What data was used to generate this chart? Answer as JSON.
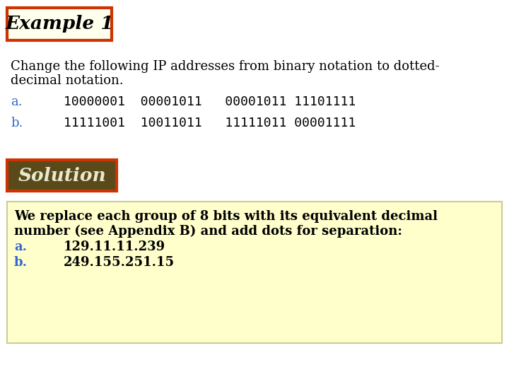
{
  "background_color": "#ffffff",
  "title_text": "Example 1",
  "title_box_bg": "#ffffee",
  "title_box_border": "#cc3300",
  "title_fontsize": 19,
  "description_line1": "Change the following IP addresses from binary notation to dotted-",
  "description_line2": "decimal notation.",
  "desc_fontsize": 13,
  "row_a_label": "a.",
  "row_a_value": "10000001  00001011   00001011 11101111",
  "row_b_label": "b.",
  "row_b_value": "11111001  10011011   11111011 00001111",
  "row_fontsize": 13,
  "label_color": "#3366cc",
  "value_color": "#000000",
  "solution_text": "Solution",
  "solution_box_bg": "#5a4a1a",
  "solution_box_border": "#cc3300",
  "solution_font_color": "#e8e8d0",
  "solution_fontsize": 19,
  "answer_box_bg": "#ffffcc",
  "answer_box_border": "#cccc99",
  "answer_line1": "We replace each group of 8 bits with its equivalent decimal",
  "answer_line2": "number (see Appendix B) and add dots for separation:",
  "answer_a_label": "a.",
  "answer_a_value": "129.11.11.239",
  "answer_b_label": "b.",
  "answer_b_value": "249.155.251.15",
  "answer_fontsize": 13,
  "answer_label_color": "#3366cc",
  "answer_value_color": "#000000"
}
